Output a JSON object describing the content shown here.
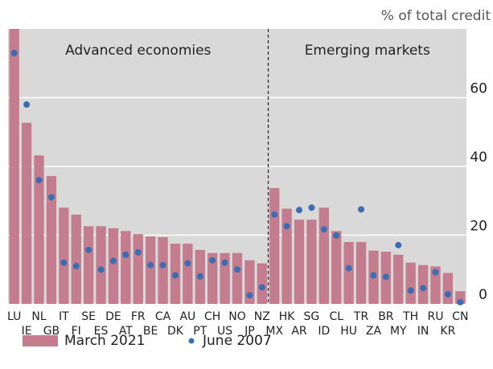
{
  "chart_data": {
    "type": "bar_dot",
    "unit_label": "% of total credit",
    "categories": [
      "LU",
      "IE",
      "NL",
      "GB",
      "IT",
      "FI",
      "SE",
      "ES",
      "DE",
      "AT",
      "FR",
      "BE",
      "CA",
      "DK",
      "AU",
      "PT",
      "CH",
      "US",
      "NO",
      "JP",
      "NZ",
      "MX",
      "HK",
      "AR",
      "SG",
      "ID",
      "CL",
      "HU",
      "TR",
      "ZA",
      "BR",
      "MY",
      "TH",
      "IN",
      "RU",
      "KR",
      "CN"
    ],
    "groups": [
      {
        "label": "Advanced economies",
        "first": "LU",
        "last": "NZ"
      },
      {
        "label": "Emerging markets",
        "first": "MX",
        "last": "CN"
      }
    ],
    "series": [
      {
        "name": "March 2021",
        "color": "#c47d8e",
        "mark": "bar",
        "values": [
          80,
          52.7,
          43.2,
          37.2,
          28,
          26,
          22.6,
          22.6,
          22,
          21.2,
          20.3,
          19.6,
          19.4,
          17.5,
          17.5,
          15.7,
          14.8,
          14.8,
          14.8,
          12.7,
          11.8,
          33.7,
          27.7,
          24.5,
          24.5,
          28,
          21.2,
          18,
          18,
          15.5,
          15.2,
          14.3,
          12,
          11.3,
          10.9,
          9,
          3.7
        ]
      },
      {
        "name": "June 2007",
        "color": "#3b6db3",
        "mark": "dot",
        "values": [
          73,
          58,
          36,
          31,
          12,
          11,
          15.7,
          10,
          12.5,
          14.3,
          15,
          11.3,
          11.3,
          8.3,
          11.8,
          8,
          12.7,
          12,
          10,
          2.5,
          4.8,
          26,
          22.6,
          27.3,
          28,
          21.7,
          19.9,
          10.4,
          27.5,
          8.3,
          7.9,
          17.1,
          3.9,
          4.6,
          9.2,
          2.8,
          0.5
        ]
      }
    ],
    "ylim": [
      0,
      80
    ],
    "yticks": [
      0,
      20,
      40,
      60
    ],
    "grid": true
  }
}
